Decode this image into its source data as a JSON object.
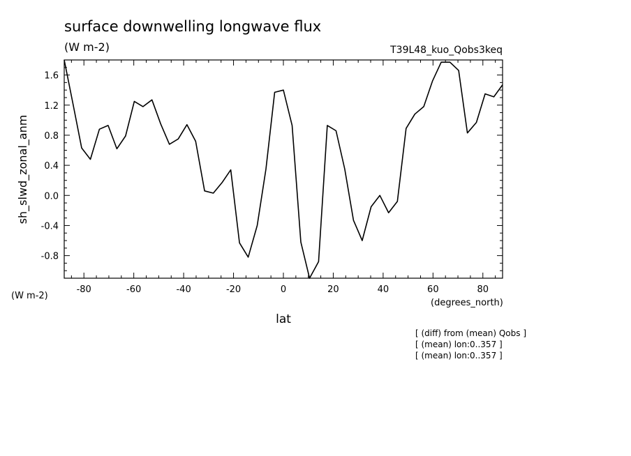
{
  "chart_data": {
    "type": "line",
    "title": "surface downwelling longwave flux",
    "units_label": "(W m-2)",
    "run_label": "T39L48_kuo_Qobs3keq",
    "ylabel": "sh_slwd_zonal_anm",
    "xlabel": "lat",
    "x_units_label": "(degrees_north)",
    "y_units_label": "(W m-2)",
    "notes": [
      "[ (diff) from (mean) Qobs ]",
      "[ (mean) lon:0..357 ]",
      "[ (mean) lon:0..357 ]"
    ],
    "xlim": [
      -87.9,
      87.9
    ],
    "ylim": [
      -1.1,
      1.8
    ],
    "xticks": [
      -80,
      -60,
      -40,
      -20,
      0,
      20,
      40,
      60,
      80
    ],
    "xtick_labels": [
      "-80",
      "-60",
      "-40",
      "-20",
      "0",
      "20",
      "40",
      "60",
      "80"
    ],
    "yticks": [
      -0.8,
      -0.4,
      0.0,
      0.4,
      0.8,
      1.2,
      1.6
    ],
    "ytick_labels": [
      "-0.8",
      "-0.4",
      "0.0",
      "0.4",
      "0.8",
      "1.2",
      "1.6"
    ],
    "grid": false,
    "series": [
      {
        "x": [
          -87.9,
          -84.4,
          -80.9,
          -77.4,
          -73.8,
          -70.3,
          -66.8,
          -63.3,
          -59.8,
          -56.3,
          -52.7,
          -49.2,
          -45.7,
          -42.2,
          -38.7,
          -35.2,
          -31.6,
          -28.1,
          -24.6,
          -21.1,
          -17.6,
          -14.1,
          -10.5,
          -7.0,
          -3.5,
          0.0,
          3.5,
          7.0,
          10.5,
          14.1,
          17.6,
          21.1,
          24.6,
          28.1,
          31.6,
          35.2,
          38.7,
          42.2,
          45.7,
          49.2,
          52.7,
          56.3,
          59.8,
          63.3,
          66.8,
          70.3,
          73.8,
          77.4,
          80.9,
          84.4,
          87.9
        ],
        "y": [
          1.8,
          1.22,
          0.63,
          0.48,
          0.88,
          0.93,
          0.62,
          0.79,
          1.25,
          1.18,
          1.27,
          0.95,
          0.68,
          0.75,
          0.94,
          0.72,
          0.06,
          0.03,
          0.17,
          0.34,
          -0.63,
          -0.82,
          -0.4,
          0.35,
          1.37,
          1.4,
          0.93,
          -0.62,
          -1.1,
          -0.88,
          0.93,
          0.86,
          0.35,
          -0.33,
          -0.6,
          -0.15,
          0.0,
          -0.23,
          -0.08,
          0.89,
          1.08,
          1.18,
          1.52,
          1.77,
          1.77,
          1.66,
          0.83,
          0.97,
          1.35,
          1.31,
          1.47
        ]
      }
    ]
  }
}
